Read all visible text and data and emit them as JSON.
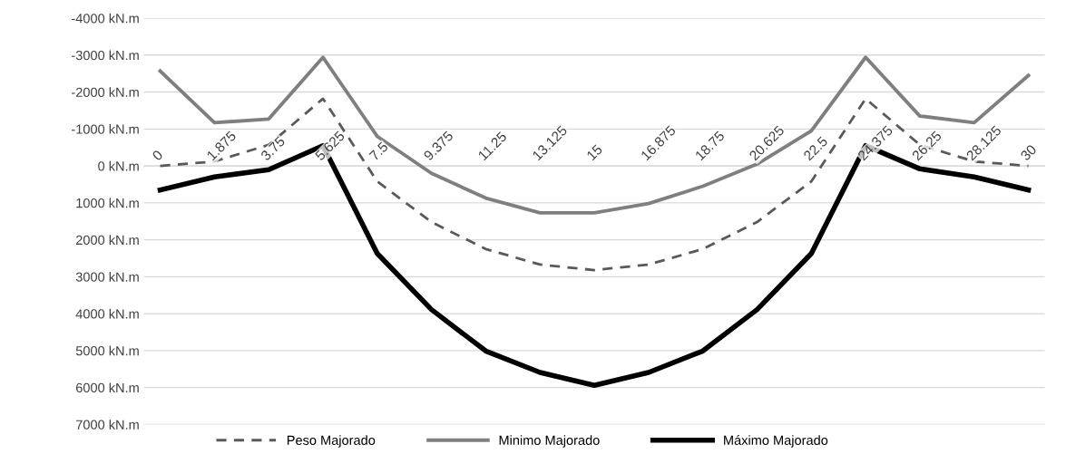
{
  "chart_data": {
    "type": "line",
    "categories": [
      "0",
      "1.875",
      "3.75",
      "5.625",
      "7.5",
      "9.375",
      "11.25",
      "13.125",
      "15",
      "16.875",
      "18.75",
      "20.625",
      "22.5",
      "24.375",
      "26.25",
      "28.125",
      "30"
    ],
    "series": [
      {
        "name": "Peso Majorado",
        "color": "#595959",
        "line_style": "dashed",
        "values": [
          0,
          -120,
          -570,
          -1820,
          420,
          1520,
          2250,
          2670,
          2820,
          2670,
          2250,
          1520,
          420,
          -1820,
          -570,
          -120,
          0
        ]
      },
      {
        "name": "Minimo Majorado",
        "color": "#7f7f7f",
        "line_style": "solid",
        "values": [
          -2570,
          -1170,
          -1270,
          -2940,
          -800,
          200,
          870,
          1270,
          1270,
          1020,
          550,
          -50,
          -950,
          -2940,
          -1350,
          -1170,
          -2450
        ]
      },
      {
        "name": "Máximo Majorado",
        "color": "#000000",
        "line_style": "solid",
        "values": [
          650,
          300,
          100,
          -550,
          2370,
          3890,
          5010,
          5590,
          5940,
          5590,
          5010,
          3890,
          2370,
          -550,
          80,
          300,
          650
        ]
      }
    ],
    "ylim": [
      7000,
      -4000
    ],
    "yticks": [
      {
        "value": -4000,
        "label": "-4000 kN.m"
      },
      {
        "value": -3000,
        "label": "-3000 kN.m"
      },
      {
        "value": -2000,
        "label": "-2000 kN.m"
      },
      {
        "value": -1000,
        "label": "-1000 kN.m"
      },
      {
        "value": 0,
        "label": "0 kN.m"
      },
      {
        "value": 1000,
        "label": "1000 kN.m"
      },
      {
        "value": 2000,
        "label": "2000 kN.m"
      },
      {
        "value": 3000,
        "label": "3000 kN.m"
      },
      {
        "value": 4000,
        "label": "4000 kN.m"
      },
      {
        "value": 5000,
        "label": "5000 kN.m"
      },
      {
        "value": 6000,
        "label": "6000 kN.m"
      },
      {
        "value": 7000,
        "label": "7000 kN.m"
      }
    ],
    "grid": "y",
    "legend": "bottom",
    "marker": "none"
  }
}
